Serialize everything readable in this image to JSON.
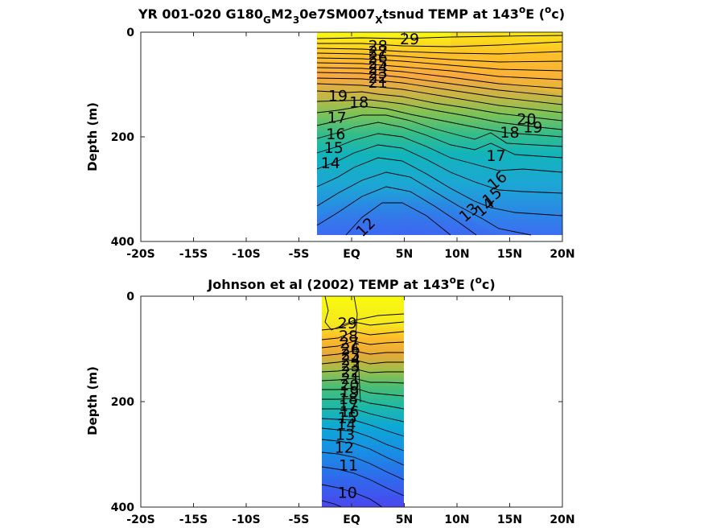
{
  "chart_data": [
    {
      "type": "contour",
      "title": {
        "prefix": "YR 001-020 G180",
        "sub1": "G",
        "mid1": "M2",
        "sub2": "3",
        "mid2": "0e7SM007",
        "sub3": "X",
        "mid3": "tsnud TEMP at 143",
        "sup1": "o",
        "mid4": "E (",
        "sup2": "o",
        "suffix": "c)"
      },
      "ylabel": "Depth (m)",
      "xlim": [
        -20,
        20
      ],
      "ylim": [
        0,
        400
      ],
      "y_reversed": true,
      "xtick_labels": [
        "-20S",
        "-15S",
        "-10S",
        "-5S",
        "EQ",
        "5N",
        "10N",
        "15N",
        "20N"
      ],
      "ytick_labels": [
        "0",
        "200",
        "400"
      ],
      "data_extent": {
        "lat": [
          -3.3,
          20
        ],
        "depth": [
          0,
          385
        ]
      },
      "colormap": "parula",
      "color_range": [
        10,
        29
      ],
      "contour_labels": [
        {
          "text": "29",
          "lat": 5.5,
          "depth": 12
        },
        {
          "text": "28",
          "lat": 2.5,
          "depth": 25
        },
        {
          "text": "27",
          "lat": 2.5,
          "depth": 36
        },
        {
          "text": "26",
          "lat": 2.5,
          "depth": 47
        },
        {
          "text": "25",
          "lat": 2.5,
          "depth": 58
        },
        {
          "text": "24",
          "lat": 2.5,
          "depth": 67
        },
        {
          "text": "23",
          "lat": 2.5,
          "depth": 77
        },
        {
          "text": "22",
          "lat": 2.5,
          "depth": 86
        },
        {
          "text": "21",
          "lat": 2.5,
          "depth": 95
        },
        {
          "text": "19",
          "lat": -1.3,
          "depth": 121
        },
        {
          "text": "18",
          "lat": 0.7,
          "depth": 133
        },
        {
          "text": "17",
          "lat": -1.4,
          "depth": 162
        },
        {
          "text": "16",
          "lat": -1.5,
          "depth": 194
        },
        {
          "text": "15",
          "lat": -1.7,
          "depth": 220
        },
        {
          "text": "14",
          "lat": -2.0,
          "depth": 249
        },
        {
          "text": "12",
          "lat": 1.3,
          "depth": 372
        },
        {
          "text": "20",
          "lat": 16.6,
          "depth": 165
        },
        {
          "text": "19",
          "lat": 17.2,
          "depth": 181
        },
        {
          "text": "18",
          "lat": 15.0,
          "depth": 191
        },
        {
          "text": "17",
          "lat": 13.7,
          "depth": 235
        },
        {
          "text": "16",
          "lat": 13.8,
          "depth": 283
        },
        {
          "text": "15",
          "lat": 13.3,
          "depth": 313
        },
        {
          "text": "14",
          "lat": 12.6,
          "depth": 334
        },
        {
          "text": "13",
          "lat": 11.1,
          "depth": 344
        }
      ]
    },
    {
      "type": "contour",
      "title": {
        "prefix": "Johnson et al (2002) TEMP at 143",
        "sup1": "o",
        "mid1": "E (",
        "sup2": "o",
        "suffix": "c)"
      },
      "ylabel": "Depth (m)",
      "xlim": [
        -20,
        20
      ],
      "ylim": [
        0,
        400
      ],
      "y_reversed": true,
      "xtick_labels": [
        "-20S",
        "-15S",
        "-10S",
        "-5S",
        "EQ",
        "5N",
        "10N",
        "15N",
        "20N"
      ],
      "ytick_labels": [
        "0",
        "200",
        "400"
      ],
      "data_extent": {
        "lat": [
          -2.7,
          5
        ],
        "depth": [
          0,
          400
        ]
      },
      "colormap": "parula",
      "color_range": [
        10,
        29
      ],
      "contour_labels": [
        {
          "text": "29",
          "lat": -0.4,
          "depth": 50
        },
        {
          "text": "28",
          "lat": -0.3,
          "depth": 75
        },
        {
          "text": "27",
          "lat": -0.2,
          "depth": 88
        },
        {
          "text": "26",
          "lat": -0.1,
          "depth": 99
        },
        {
          "text": "25",
          "lat": -0.1,
          "depth": 110
        },
        {
          "text": "24",
          "lat": -0.1,
          "depth": 120
        },
        {
          "text": "23",
          "lat": -0.1,
          "depth": 131
        },
        {
          "text": "22",
          "lat": -0.1,
          "depth": 143
        },
        {
          "text": "21",
          "lat": -0.1,
          "depth": 156
        },
        {
          "text": "20",
          "lat": -0.2,
          "depth": 168
        },
        {
          "text": "19",
          "lat": -0.2,
          "depth": 181
        },
        {
          "text": "18",
          "lat": -0.3,
          "depth": 194
        },
        {
          "text": "17",
          "lat": -0.3,
          "depth": 207
        },
        {
          "text": "16",
          "lat": -0.2,
          "depth": 218
        },
        {
          "text": "15",
          "lat": -0.4,
          "depth": 230
        },
        {
          "text": "14",
          "lat": -0.5,
          "depth": 242
        },
        {
          "text": "13",
          "lat": -0.6,
          "depth": 262
        },
        {
          "text": "12",
          "lat": -0.7,
          "depth": 286
        },
        {
          "text": "11",
          "lat": -0.3,
          "depth": 320
        },
        {
          "text": "10",
          "lat": -0.4,
          "depth": 372
        }
      ]
    }
  ]
}
